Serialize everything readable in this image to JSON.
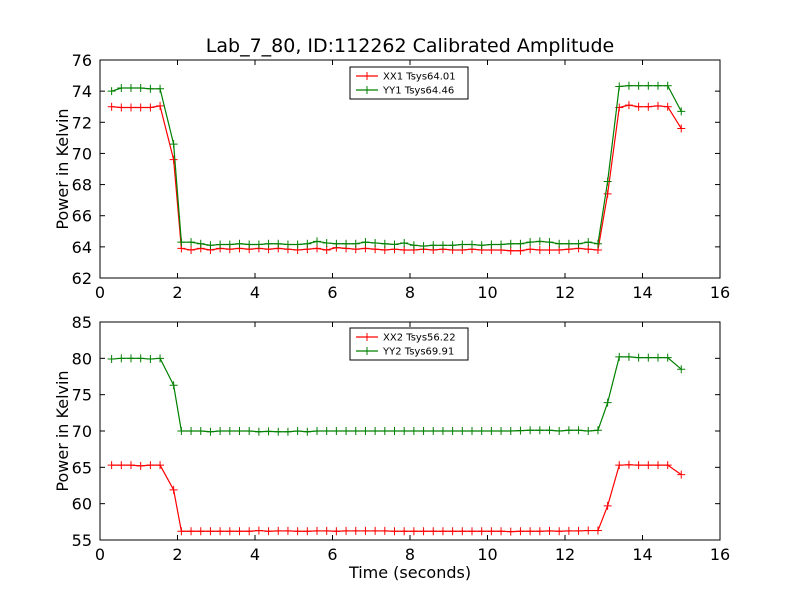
{
  "chart_data": [
    {
      "type": "line",
      "title": "Lab_7_80, ID:112262 Calibrated Amplitude",
      "xlabel": "",
      "ylabel": "Power in Kelvin",
      "xlim": [
        0,
        16
      ],
      "ylim": [
        62,
        76
      ],
      "xticks": [
        "0",
        "2",
        "4",
        "6",
        "8",
        "10",
        "12",
        "14",
        "16"
      ],
      "yticks": [
        "62",
        "64",
        "66",
        "68",
        "70",
        "72",
        "74",
        "76"
      ],
      "legend_position": "top-center",
      "grid": false,
      "x": [
        0.3,
        0.55,
        0.8,
        1.05,
        1.3,
        1.55,
        1.9,
        2.1,
        2.35,
        2.6,
        2.85,
        3.1,
        3.35,
        3.6,
        3.85,
        4.1,
        4.35,
        4.6,
        4.85,
        5.1,
        5.35,
        5.6,
        5.85,
        6.1,
        6.35,
        6.6,
        6.85,
        7.1,
        7.35,
        7.6,
        7.85,
        8.1,
        8.35,
        8.6,
        8.85,
        9.1,
        9.35,
        9.6,
        9.85,
        10.1,
        10.35,
        10.6,
        10.85,
        11.1,
        11.35,
        11.6,
        11.85,
        12.1,
        12.35,
        12.6,
        12.85,
        13.1,
        13.4,
        13.65,
        13.9,
        14.15,
        14.4,
        14.65,
        15.0
      ],
      "series": [
        {
          "name": "XX1 Tsys64.01",
          "color": "#ff0000",
          "values": [
            73.0,
            72.95,
            72.95,
            72.95,
            72.95,
            73.05,
            69.6,
            63.9,
            63.8,
            63.9,
            63.8,
            63.9,
            63.85,
            63.9,
            63.85,
            63.9,
            63.85,
            63.9,
            63.85,
            63.8,
            63.85,
            63.9,
            63.8,
            63.95,
            63.9,
            63.85,
            63.9,
            63.85,
            63.8,
            63.85,
            63.8,
            63.8,
            63.85,
            63.8,
            63.85,
            63.8,
            63.8,
            63.85,
            63.8,
            63.8,
            63.8,
            63.75,
            63.75,
            63.85,
            63.8,
            63.8,
            63.8,
            63.85,
            63.9,
            63.85,
            63.8,
            67.4,
            72.95,
            73.1,
            73.0,
            73.0,
            73.05,
            73.0,
            71.6
          ]
        },
        {
          "name": "YY1 Tsys64.46",
          "color": "#008000",
          "values": [
            74.0,
            74.2,
            74.2,
            74.2,
            74.15,
            74.15,
            70.6,
            64.3,
            64.3,
            64.2,
            64.1,
            64.15,
            64.15,
            64.2,
            64.15,
            64.15,
            64.2,
            64.2,
            64.15,
            64.15,
            64.2,
            64.35,
            64.25,
            64.2,
            64.2,
            64.2,
            64.3,
            64.25,
            64.2,
            64.15,
            64.25,
            64.1,
            64.05,
            64.1,
            64.1,
            64.1,
            64.15,
            64.15,
            64.1,
            64.15,
            64.15,
            64.2,
            64.2,
            64.3,
            64.35,
            64.3,
            64.2,
            64.2,
            64.2,
            64.3,
            64.2,
            68.2,
            74.3,
            74.35,
            74.35,
            74.35,
            74.35,
            74.35,
            72.7
          ]
        }
      ]
    },
    {
      "type": "line",
      "title": "",
      "xlabel": "Time (seconds)",
      "ylabel": "Power in Kelvin",
      "xlim": [
        0,
        16
      ],
      "ylim": [
        55,
        85
      ],
      "xticks": [
        "0",
        "2",
        "4",
        "6",
        "8",
        "10",
        "12",
        "14",
        "16"
      ],
      "yticks": [
        "55",
        "60",
        "65",
        "70",
        "75",
        "80",
        "85"
      ],
      "legend_position": "top-center",
      "grid": false,
      "x": [
        0.3,
        0.55,
        0.8,
        1.05,
        1.3,
        1.55,
        1.9,
        2.1,
        2.35,
        2.6,
        2.85,
        3.1,
        3.35,
        3.6,
        3.85,
        4.1,
        4.35,
        4.6,
        4.85,
        5.1,
        5.35,
        5.6,
        5.85,
        6.1,
        6.35,
        6.6,
        6.85,
        7.1,
        7.35,
        7.6,
        7.85,
        8.1,
        8.35,
        8.6,
        8.85,
        9.1,
        9.35,
        9.6,
        9.85,
        10.1,
        10.35,
        10.6,
        10.85,
        11.1,
        11.35,
        11.6,
        11.85,
        12.1,
        12.35,
        12.6,
        12.85,
        13.1,
        13.4,
        13.65,
        13.9,
        14.15,
        14.4,
        14.65,
        15.0
      ],
      "series": [
        {
          "name": "XX2 Tsys56.22",
          "color": "#ff0000",
          "values": [
            65.3,
            65.3,
            65.3,
            65.2,
            65.3,
            65.3,
            61.9,
            56.2,
            56.2,
            56.2,
            56.2,
            56.2,
            56.2,
            56.2,
            56.2,
            56.3,
            56.2,
            56.25,
            56.25,
            56.2,
            56.2,
            56.25,
            56.25,
            56.2,
            56.25,
            56.25,
            56.25,
            56.25,
            56.25,
            56.2,
            56.2,
            56.2,
            56.2,
            56.2,
            56.2,
            56.2,
            56.2,
            56.2,
            56.2,
            56.2,
            56.2,
            56.15,
            56.2,
            56.2,
            56.2,
            56.25,
            56.2,
            56.25,
            56.25,
            56.3,
            56.3,
            59.7,
            65.3,
            65.35,
            65.3,
            65.3,
            65.3,
            65.3,
            64.0
          ]
        },
        {
          "name": "YY2 Tsys69.91",
          "color": "#008000",
          "values": [
            79.9,
            80.0,
            80.0,
            80.0,
            79.9,
            80.0,
            76.3,
            70.0,
            70.0,
            70.0,
            69.9,
            70.0,
            70.0,
            70.0,
            70.0,
            69.9,
            69.95,
            69.9,
            69.9,
            70.0,
            69.9,
            70.0,
            70.0,
            70.0,
            70.0,
            70.0,
            70.0,
            70.0,
            70.0,
            70.0,
            70.0,
            70.0,
            70.0,
            70.0,
            70.0,
            70.0,
            70.0,
            70.0,
            70.0,
            70.0,
            70.0,
            70.0,
            70.05,
            70.1,
            70.1,
            70.1,
            70.0,
            70.1,
            70.1,
            70.0,
            70.1,
            73.9,
            80.2,
            80.2,
            80.1,
            80.1,
            80.1,
            80.1,
            78.5
          ]
        }
      ]
    }
  ]
}
